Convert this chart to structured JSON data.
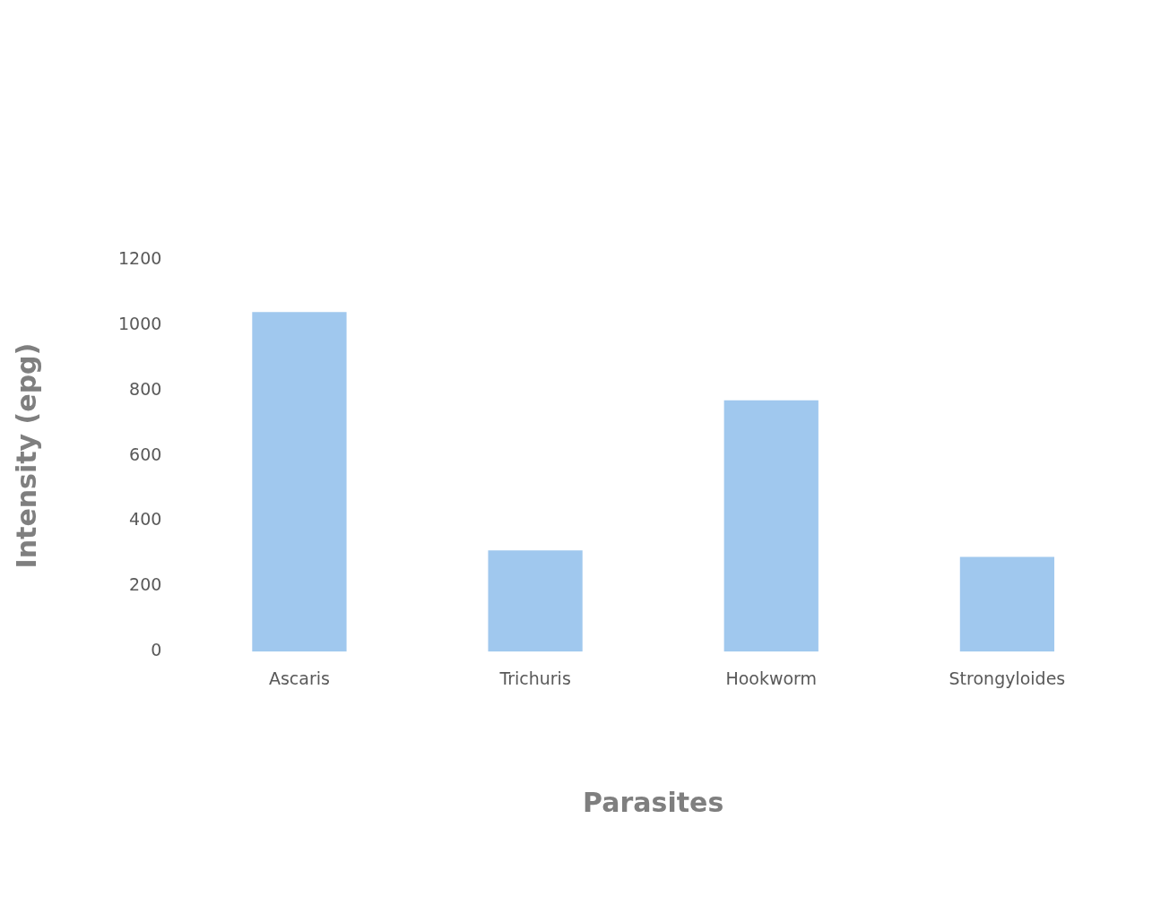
{
  "chart_data": {
    "type": "bar",
    "xlabel": "Parasites",
    "ylabel": "Intensity (epg)",
    "categories": [
      "Ascaris",
      "Trichuris",
      "Hookworm",
      "Strongyloides"
    ],
    "values": [
      1040,
      310,
      770,
      290
    ],
    "color": "#a0c8ee",
    "ylim": [
      0,
      1200
    ],
    "yticks": [
      0,
      200,
      400,
      600,
      800,
      1000,
      1200
    ],
    "grid": false,
    "legend": false
  }
}
